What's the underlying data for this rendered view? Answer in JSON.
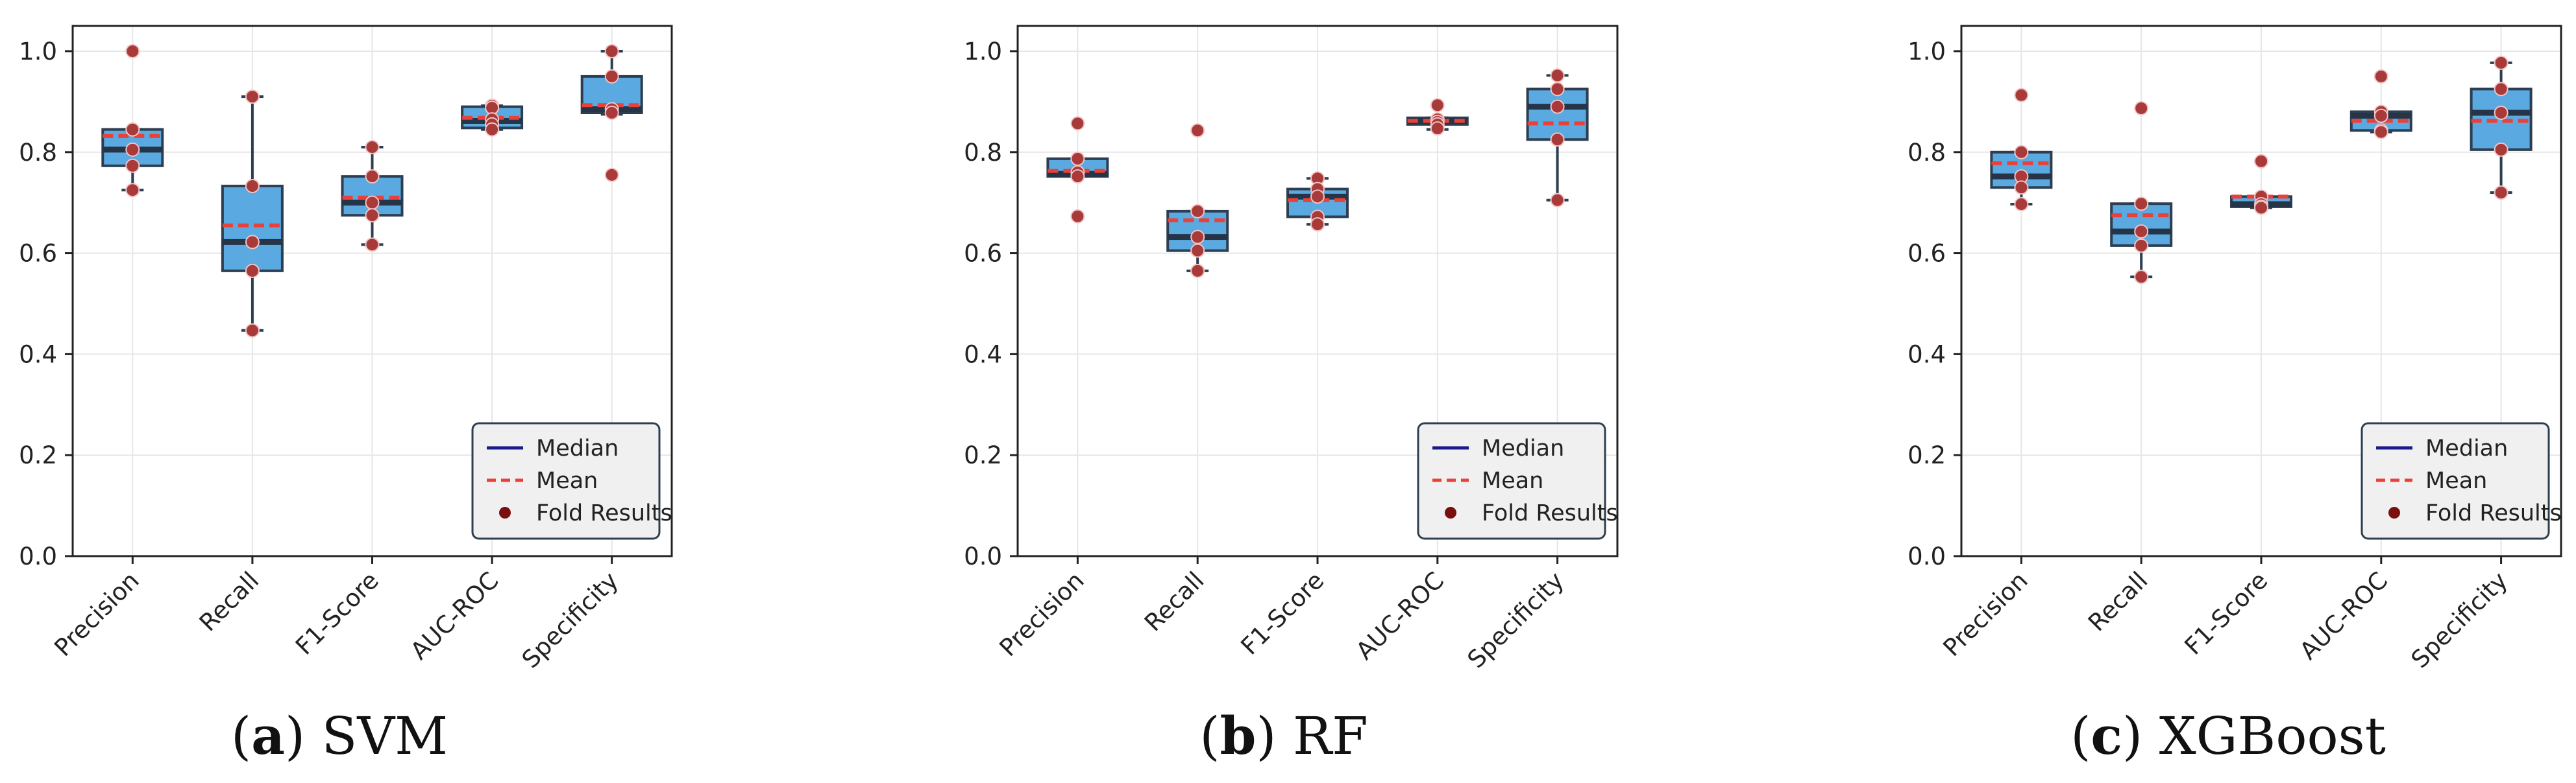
{
  "chart_data": [
    {
      "type": "box",
      "caption_letter": "a",
      "caption_name": "SVM",
      "categories": [
        "Precision",
        "Recall",
        "F1-Score",
        "AUC-ROC",
        "Specificity"
      ],
      "ylim": [
        0.0,
        1.05
      ],
      "yticks": [
        "0.0",
        "0.2",
        "0.4",
        "0.6",
        "0.8",
        "1.0"
      ],
      "grid": true,
      "legend_position": "bottom-right",
      "boxes": [
        {
          "whisker_low": 0.725,
          "q1": 0.773,
          "median": 0.805,
          "q3": 0.845,
          "whisker_high": 0.845,
          "mean": 0.832,
          "points": [
            1.0,
            0.845,
            0.805,
            0.773,
            0.725
          ]
        },
        {
          "whisker_low": 0.447,
          "q1": 0.565,
          "median": 0.622,
          "q3": 0.733,
          "whisker_high": 0.91,
          "mean": 0.655,
          "points": [
            0.91,
            0.733,
            0.622,
            0.565,
            0.447
          ]
        },
        {
          "whisker_low": 0.617,
          "q1": 0.675,
          "median": 0.7,
          "q3": 0.752,
          "whisker_high": 0.81,
          "mean": 0.71,
          "points": [
            0.81,
            0.752,
            0.7,
            0.675,
            0.617
          ]
        },
        {
          "whisker_low": 0.845,
          "q1": 0.848,
          "median": 0.862,
          "q3": 0.89,
          "whisker_high": 0.892,
          "mean": 0.868,
          "points": [
            0.892,
            0.888,
            0.865,
            0.855,
            0.845
          ]
        },
        {
          "whisker_low": 0.875,
          "q1": 0.878,
          "median": 0.885,
          "q3": 0.95,
          "whisker_high": 1.0,
          "mean": 0.893,
          "points": [
            1.0,
            0.95,
            0.885,
            0.878,
            0.755
          ]
        }
      ]
    },
    {
      "type": "box",
      "caption_letter": "b",
      "caption_name": "RF",
      "categories": [
        "Precision",
        "Recall",
        "F1-Score",
        "AUC-ROC",
        "Specificity"
      ],
      "ylim": [
        0.0,
        1.05
      ],
      "yticks": [
        "0.0",
        "0.2",
        "0.4",
        "0.6",
        "0.8",
        "1.0"
      ],
      "grid": true,
      "legend_position": "bottom-right",
      "boxes": [
        {
          "whisker_low": 0.752,
          "q1": 0.752,
          "median": 0.757,
          "q3": 0.787,
          "whisker_high": 0.787,
          "mean": 0.763,
          "points": [
            0.857,
            0.787,
            0.76,
            0.752,
            0.673
          ]
        },
        {
          "whisker_low": 0.565,
          "q1": 0.605,
          "median": 0.632,
          "q3": 0.683,
          "whisker_high": 0.683,
          "mean": 0.665,
          "points": [
            0.843,
            0.683,
            0.632,
            0.605,
            0.565
          ]
        },
        {
          "whisker_low": 0.657,
          "q1": 0.672,
          "median": 0.712,
          "q3": 0.727,
          "whisker_high": 0.748,
          "mean": 0.705,
          "points": [
            0.748,
            0.727,
            0.712,
            0.672,
            0.657
          ]
        },
        {
          "whisker_low": 0.845,
          "q1": 0.855,
          "median": 0.862,
          "q3": 0.868,
          "whisker_high": 0.868,
          "mean": 0.862,
          "points": [
            0.893,
            0.865,
            0.86,
            0.855,
            0.847
          ]
        },
        {
          "whisker_low": 0.705,
          "q1": 0.825,
          "median": 0.89,
          "q3": 0.925,
          "whisker_high": 0.952,
          "mean": 0.857,
          "points": [
            0.952,
            0.925,
            0.89,
            0.825,
            0.705
          ]
        }
      ]
    },
    {
      "type": "box",
      "caption_letter": "c",
      "caption_name": "XGBoost",
      "categories": [
        "Precision",
        "Recall",
        "F1-Score",
        "AUC-ROC",
        "Specificity"
      ],
      "ylim": [
        0.0,
        1.05
      ],
      "yticks": [
        "0.0",
        "0.2",
        "0.4",
        "0.6",
        "0.8",
        "1.0"
      ],
      "grid": true,
      "legend_position": "bottom-right",
      "boxes": [
        {
          "whisker_low": 0.697,
          "q1": 0.73,
          "median": 0.752,
          "q3": 0.8,
          "whisker_high": 0.8,
          "mean": 0.778,
          "points": [
            0.913,
            0.8,
            0.752,
            0.73,
            0.697
          ]
        },
        {
          "whisker_low": 0.553,
          "q1": 0.615,
          "median": 0.643,
          "q3": 0.698,
          "whisker_high": 0.698,
          "mean": 0.675,
          "points": [
            0.887,
            0.698,
            0.643,
            0.615,
            0.553
          ]
        },
        {
          "whisker_low": 0.69,
          "q1": 0.692,
          "median": 0.697,
          "q3": 0.712,
          "whisker_high": 0.712,
          "mean": 0.712,
          "points": [
            0.782,
            0.712,
            0.697,
            0.692,
            0.69
          ]
        },
        {
          "whisker_low": 0.84,
          "q1": 0.843,
          "median": 0.872,
          "q3": 0.88,
          "whisker_high": 0.88,
          "mean": 0.862,
          "points": [
            0.95,
            0.88,
            0.872,
            0.843,
            0.84
          ]
        },
        {
          "whisker_low": 0.72,
          "q1": 0.805,
          "median": 0.878,
          "q3": 0.925,
          "whisker_high": 0.977,
          "mean": 0.862,
          "points": [
            0.977,
            0.925,
            0.878,
            0.805,
            0.72
          ]
        }
      ]
    }
  ],
  "legend": {
    "median_label": "Median",
    "mean_label": "Mean",
    "points_label": "Fold Results"
  },
  "colors": {
    "box_fill": "#5aa9e0",
    "box_edge": "#2d3e50",
    "median": "#253447",
    "mean": "#e8413a",
    "point_fill": "#a83a3a",
    "point_edge": "#f2c4c4",
    "legend_median": "#1a1a8c",
    "legend_mean": "#e8413a",
    "legend_point": "#7a0f0f",
    "grid": "#e6e6e6",
    "axis": "#222222"
  }
}
